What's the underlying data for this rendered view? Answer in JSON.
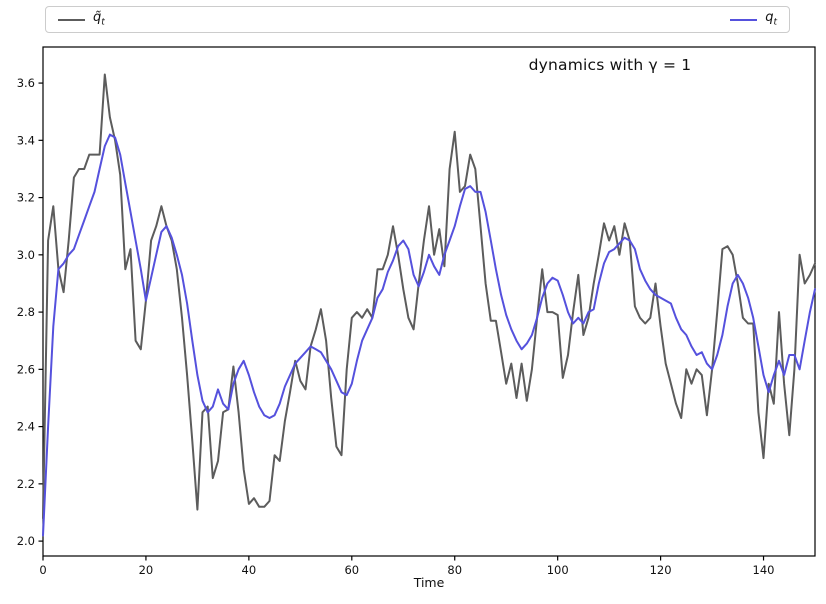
{
  "figure": {
    "background": "#ffffff"
  },
  "legend": {
    "entries": [
      {
        "label_base": "q̃",
        "label_sub": "t",
        "color": "#5c5c5c"
      },
      {
        "label_base": "q",
        "label_sub": "t",
        "color": "#5551dd"
      }
    ]
  },
  "annotation": {
    "text": "dynamics with γ = 1"
  },
  "axes": {
    "xlabel": "Time",
    "x_ticks": [
      0,
      20,
      40,
      60,
      80,
      100,
      120,
      140
    ],
    "y_ticks": [
      2.0,
      2.2,
      2.4,
      2.6,
      2.8,
      3.0,
      3.2,
      3.4,
      3.6
    ],
    "xlim": [
      0,
      150
    ],
    "ylim": [
      1.948,
      3.726
    ]
  },
  "chart_data": {
    "type": "line",
    "title": "dynamics with γ = 1",
    "xlabel": "Time",
    "ylabel": "",
    "xlim": [
      0,
      150
    ],
    "ylim": [
      1.948,
      3.726
    ],
    "grid": false,
    "legend_position": "top, expanded across full figure width",
    "x": [
      0,
      1,
      2,
      3,
      4,
      5,
      6,
      7,
      8,
      9,
      10,
      11,
      12,
      13,
      14,
      15,
      16,
      17,
      18,
      19,
      20,
      21,
      22,
      23,
      24,
      25,
      26,
      27,
      28,
      29,
      30,
      31,
      32,
      33,
      34,
      35,
      36,
      37,
      38,
      39,
      40,
      41,
      42,
      43,
      44,
      45,
      46,
      47,
      48,
      49,
      50,
      51,
      52,
      53,
      54,
      55,
      56,
      57,
      58,
      59,
      60,
      61,
      62,
      63,
      64,
      65,
      66,
      67,
      68,
      69,
      70,
      71,
      72,
      73,
      74,
      75,
      76,
      77,
      78,
      79,
      80,
      81,
      82,
      83,
      84,
      85,
      86,
      87,
      88,
      89,
      90,
      91,
      92,
      93,
      94,
      95,
      96,
      97,
      98,
      99,
      100,
      101,
      102,
      103,
      104,
      105,
      106,
      107,
      108,
      109,
      110,
      111,
      112,
      113,
      114,
      115,
      116,
      117,
      118,
      119,
      120,
      121,
      122,
      123,
      124,
      125,
      126,
      127,
      128,
      129,
      130,
      131,
      132,
      133,
      134,
      135,
      136,
      137,
      138,
      139,
      140,
      141,
      142,
      143,
      144,
      145,
      146,
      147,
      148,
      149,
      150
    ],
    "series": [
      {
        "name": "q̃_t",
        "color": "#5c5c5c",
        "linewidth": 2,
        "values": [
          2.08,
          3.05,
          3.17,
          2.95,
          2.87,
          3.05,
          3.27,
          3.3,
          3.3,
          3.35,
          3.35,
          3.35,
          3.63,
          3.48,
          3.4,
          3.28,
          2.95,
          3.02,
          2.7,
          2.67,
          2.84,
          3.05,
          3.1,
          3.17,
          3.1,
          3.05,
          2.95,
          2.78,
          2.58,
          2.35,
          2.11,
          2.45,
          2.47,
          2.22,
          2.28,
          2.45,
          2.46,
          2.61,
          2.45,
          2.25,
          2.13,
          2.15,
          2.12,
          2.12,
          2.14,
          2.3,
          2.28,
          2.42,
          2.52,
          2.63,
          2.56,
          2.53,
          2.68,
          2.74,
          2.81,
          2.7,
          2.5,
          2.33,
          2.3,
          2.6,
          2.78,
          2.8,
          2.78,
          2.81,
          2.78,
          2.95,
          2.95,
          3.0,
          3.1,
          3.0,
          2.88,
          2.78,
          2.74,
          2.9,
          3.05,
          3.17,
          3.0,
          3.09,
          2.96,
          3.3,
          3.43,
          3.22,
          3.24,
          3.35,
          3.3,
          3.1,
          2.9,
          2.77,
          2.77,
          2.66,
          2.55,
          2.62,
          2.5,
          2.62,
          2.49,
          2.6,
          2.78,
          2.95,
          2.8,
          2.8,
          2.79,
          2.57,
          2.65,
          2.8,
          2.93,
          2.72,
          2.78,
          2.9,
          3.0,
          3.11,
          3.05,
          3.1,
          3.0,
          3.11,
          3.05,
          2.82,
          2.78,
          2.76,
          2.78,
          2.9,
          2.75,
          2.62,
          2.55,
          2.48,
          2.43,
          2.6,
          2.55,
          2.6,
          2.58,
          2.44,
          2.6,
          2.8,
          3.02,
          3.03,
          3.0,
          2.9,
          2.78,
          2.76,
          2.76,
          2.45,
          2.29,
          2.55,
          2.48,
          2.8,
          2.55,
          2.37,
          2.6,
          3.0,
          2.9,
          2.93,
          2.97
        ]
      },
      {
        "name": "q_t",
        "color": "#5551dd",
        "linewidth": 2,
        "values": [
          2.02,
          2.4,
          2.75,
          2.95,
          2.97,
          3.0,
          3.02,
          3.07,
          3.12,
          3.17,
          3.22,
          3.3,
          3.38,
          3.42,
          3.41,
          3.35,
          3.25,
          3.15,
          3.05,
          2.95,
          2.84,
          2.92,
          3.0,
          3.08,
          3.1,
          3.06,
          3.0,
          2.93,
          2.83,
          2.7,
          2.58,
          2.49,
          2.45,
          2.47,
          2.53,
          2.48,
          2.46,
          2.55,
          2.6,
          2.63,
          2.58,
          2.52,
          2.47,
          2.44,
          2.43,
          2.44,
          2.48,
          2.54,
          2.58,
          2.62,
          2.64,
          2.66,
          2.68,
          2.67,
          2.66,
          2.63,
          2.6,
          2.56,
          2.52,
          2.51,
          2.55,
          2.63,
          2.7,
          2.74,
          2.78,
          2.85,
          2.88,
          2.94,
          2.98,
          3.03,
          3.05,
          3.02,
          2.93,
          2.89,
          2.94,
          3.0,
          2.96,
          2.93,
          3.0,
          3.05,
          3.1,
          3.17,
          3.23,
          3.24,
          3.22,
          3.22,
          3.15,
          3.05,
          2.95,
          2.86,
          2.79,
          2.74,
          2.7,
          2.67,
          2.69,
          2.72,
          2.78,
          2.85,
          2.9,
          2.92,
          2.91,
          2.86,
          2.8,
          2.76,
          2.78,
          2.76,
          2.8,
          2.81,
          2.9,
          2.97,
          3.01,
          3.02,
          3.04,
          3.06,
          3.05,
          3.02,
          2.95,
          2.91,
          2.88,
          2.86,
          2.85,
          2.84,
          2.83,
          2.78,
          2.74,
          2.72,
          2.68,
          2.65,
          2.66,
          2.62,
          2.6,
          2.65,
          2.72,
          2.82,
          2.9,
          2.93,
          2.9,
          2.85,
          2.78,
          2.68,
          2.58,
          2.52,
          2.58,
          2.63,
          2.58,
          2.65,
          2.65,
          2.6,
          2.7,
          2.8,
          2.88
        ]
      }
    ]
  }
}
